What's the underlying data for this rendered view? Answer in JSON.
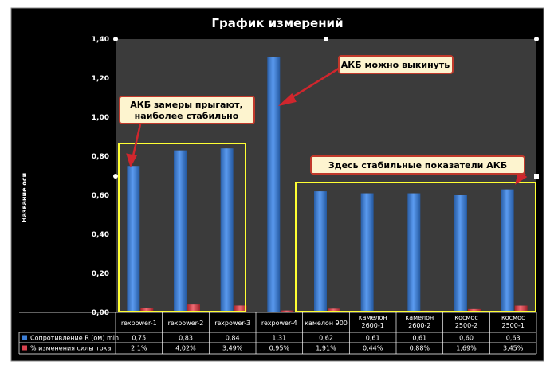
{
  "chart_data": {
    "type": "bar",
    "title": "График измерений",
    "ylabel": "Название оси",
    "xlabel": "",
    "ylim": [
      0,
      1.4
    ],
    "yticks": [
      "0,00",
      "0,20",
      "0,40",
      "0,60",
      "0,80",
      "1,00",
      "1,20",
      "1,40"
    ],
    "categories": [
      "rexpower-1",
      "rexpower-2",
      "rexpower-3",
      "rexpower-4",
      "камелон 900",
      "камелон 2600-1",
      "камелон 2600-2",
      "космос 2500-2",
      "космос 2500-1"
    ],
    "series": [
      {
        "name": "Сопротивление R (ом) min",
        "color": "#3d7fd6",
        "values": [
          0.75,
          0.83,
          0.84,
          1.31,
          0.62,
          0.61,
          0.61,
          0.6,
          0.63
        ],
        "labels": [
          "0,75",
          "0,83",
          "0,84",
          "1,31",
          "0,62",
          "0,61",
          "0,61",
          "0,60",
          "0,63"
        ]
      },
      {
        "name": "% изменения силы тока",
        "color": "#d9434f",
        "values": [
          0.021,
          0.0402,
          0.0349,
          0.0095,
          0.0191,
          0.0044,
          0.0088,
          0.0169,
          0.0345
        ],
        "labels": [
          "2,1%",
          "4,02%",
          "3,49%",
          "0,95%",
          "1,91%",
          "0,44%",
          "0,88%",
          "1,69%",
          "3,45%"
        ]
      }
    ],
    "grid": false,
    "legend": "data-table",
    "annotations": [
      "АКБ можно выкинуть",
      "АКБ замеры прыгают,\nнаиболее стабильно",
      "Здесь стабильные показатели АКБ"
    ]
  },
  "colors": {
    "background": "#000000",
    "plot_area": "#3b3b3b",
    "callout_fill": "#fdf4cf",
    "callout_border": "#c0392b",
    "highlight_box": "#ffff33"
  }
}
